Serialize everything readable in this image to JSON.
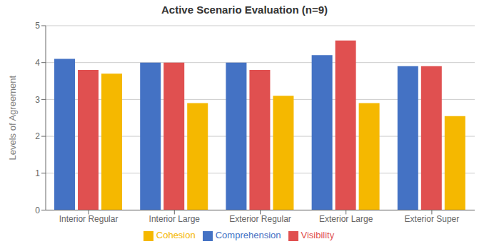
{
  "chart_data": {
    "type": "bar",
    "title": "Active Scenario Evaluation (n=9)",
    "y_label": "Levels of Agreement",
    "categories": [
      "Interior Regular",
      "Interior Large",
      "Exterior Regular",
      "Exterior Large",
      "Exterior Super"
    ],
    "series": [
      {
        "name": "Comprehension",
        "color": "#4472C4",
        "values": [
          4.1,
          4.0,
          4.0,
          4.2,
          3.9
        ]
      },
      {
        "name": "Visibility",
        "color": "#E05050",
        "values": [
          3.8,
          4.0,
          3.8,
          4.6,
          3.9
        ]
      },
      {
        "name": "Cohesion",
        "color": "#F5B800",
        "values": [
          3.7,
          2.9,
          3.1,
          2.9,
          2.55
        ]
      }
    ],
    "ylim": [
      0,
      5
    ],
    "yticks": [
      0,
      1,
      2,
      3,
      4,
      5
    ],
    "grid": true,
    "legend": "bottom"
  }
}
